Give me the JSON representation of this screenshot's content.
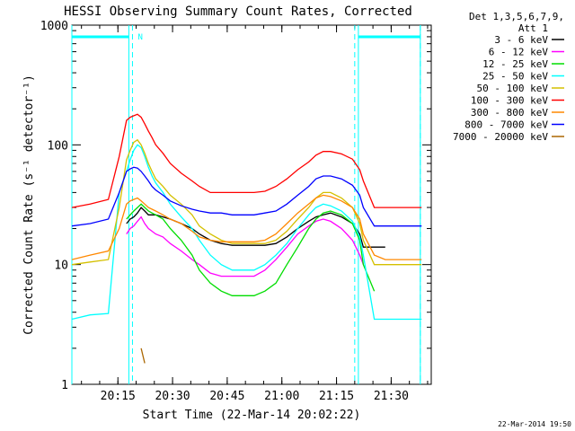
{
  "chart_data": {
    "type": "line",
    "title": "HESSI Observing Summary Count Rates, Corrected",
    "xlabel": "Start Time (22-Mar-14 20:02:22)",
    "ylabel": "Corrected Count Rate (s⁻¹ detector⁻¹)",
    "y_scale": "log",
    "ylim": [
      1,
      1000
    ],
    "xlim": [
      "20:02:22",
      "21:41:00"
    ],
    "x_ticks": [
      "20:15",
      "20:30",
      "20:45",
      "21:00",
      "21:15",
      "21:30"
    ],
    "y_ticks": [
      "1",
      "10",
      "100",
      "1000"
    ],
    "legend_header": [
      "Det 1,3,5,6,7,9,",
      "Att 1"
    ],
    "legend_position": "right",
    "footer_date": "22-Mar-2014 19:50",
    "markers": {
      "dashed_times": [
        "20:19",
        "21:20",
        "21:38"
      ],
      "night_intervals": [
        [
          "20:02:22",
          "20:18"
        ],
        [
          "21:21",
          "21:38"
        ]
      ],
      "n_label": "N"
    },
    "x_minutes": [
      0,
      5,
      10,
      13,
      15,
      16,
      17,
      18,
      19,
      20,
      21,
      22,
      23,
      25,
      27,
      30,
      33,
      35,
      38,
      41,
      44,
      47,
      50,
      53,
      56,
      59,
      62,
      65,
      67,
      69,
      71,
      74,
      77,
      79,
      80,
      83,
      86,
      90,
      93,
      96
    ],
    "series": [
      {
        "name": "3 - 6 keV",
        "color": "#000000",
        "values": [
          null,
          null,
          null,
          null,
          22,
          24,
          25,
          27,
          30,
          28,
          26,
          26,
          26,
          25,
          24,
          22,
          20,
          18,
          16,
          15,
          14.5,
          14.5,
          14.5,
          14.5,
          15,
          17,
          20,
          23,
          25,
          26,
          27,
          25,
          22,
          18,
          14,
          14,
          14,
          null,
          null,
          null
        ]
      },
      {
        "name": "6 - 12 keV",
        "color": "#ff00ff",
        "values": [
          null,
          null,
          null,
          null,
          18,
          20,
          21,
          23,
          25,
          22,
          20,
          19,
          18,
          17,
          15,
          13,
          11,
          10,
          8.5,
          8,
          8,
          8,
          8,
          9,
          11,
          14,
          18,
          21,
          23,
          24,
          23,
          20,
          16,
          12,
          10,
          null,
          null,
          null,
          null,
          null
        ]
      },
      {
        "name": "12 - 25 keV",
        "color": "#00dd00",
        "values": [
          null,
          null,
          null,
          null,
          24,
          26,
          28,
          30,
          32,
          30,
          28,
          27,
          26,
          24,
          20,
          16,
          12,
          9,
          7,
          6,
          5.5,
          5.5,
          5.5,
          6,
          7,
          10,
          14,
          20,
          24,
          27,
          28,
          26,
          22,
          16,
          10,
          6,
          null,
          null,
          null,
          null
        ]
      },
      {
        "name": "25 - 50 keV",
        "color": "#00ffff",
        "values": [
          3.5,
          3.8,
          3.9,
          40,
          60,
          75,
          90,
          100,
          95,
          80,
          65,
          55,
          48,
          40,
          32,
          25,
          20,
          16,
          12,
          10,
          9,
          9,
          9,
          10,
          12,
          15,
          20,
          26,
          30,
          32,
          31,
          28,
          23,
          17,
          12,
          3.5,
          3.5,
          3.5,
          3.5,
          3.5
        ]
      },
      {
        "name": "50 - 100 keV",
        "color": "#d4c000",
        "values": [
          10,
          10.5,
          11,
          30,
          75,
          90,
          105,
          110,
          100,
          85,
          70,
          60,
          52,
          45,
          38,
          32,
          26,
          21,
          18,
          16,
          15,
          15,
          15,
          15,
          16,
          19,
          24,
          30,
          36,
          40,
          40,
          36,
          30,
          22,
          16,
          10,
          10,
          10,
          10,
          10
        ]
      },
      {
        "name": "100 - 300 keV",
        "color": "#ff0000",
        "values": [
          30,
          32,
          35,
          80,
          160,
          170,
          175,
          180,
          170,
          150,
          130,
          115,
          100,
          85,
          70,
          58,
          50,
          45,
          40,
          40,
          40,
          40,
          40,
          41,
          45,
          52,
          62,
          72,
          82,
          88,
          88,
          84,
          76,
          62,
          50,
          30,
          30,
          30,
          30,
          30
        ]
      },
      {
        "name": "300 - 800 keV",
        "color": "#ff8800",
        "values": [
          11,
          12,
          13,
          20,
          32,
          34,
          35,
          36,
          34,
          32,
          30,
          29,
          28,
          26,
          24,
          22,
          19,
          17,
          16,
          15.5,
          15.5,
          15.5,
          15.5,
          16,
          18,
          22,
          27,
          32,
          36,
          38,
          37,
          34,
          30,
          24,
          18,
          12,
          11,
          11,
          11,
          11
        ]
      },
      {
        "name": "800 - 7000 keV",
        "color": "#0000ff",
        "values": [
          21,
          22,
          24,
          40,
          60,
          63,
          65,
          64,
          60,
          55,
          50,
          45,
          42,
          38,
          34,
          31,
          29,
          28,
          27,
          27,
          26,
          26,
          26,
          27,
          28,
          32,
          38,
          45,
          52,
          55,
          55,
          52,
          46,
          38,
          30,
          21,
          21,
          21,
          21,
          21
        ]
      },
      {
        "name": "7000 - 20000 keV",
        "color": "#aa6600",
        "values": [
          null,
          null,
          null,
          null,
          null,
          null,
          null,
          null,
          2,
          1.5,
          null,
          null,
          null,
          null,
          null,
          null,
          null,
          null,
          null,
          null,
          null,
          null,
          null,
          null,
          null,
          null,
          null,
          null,
          null,
          null,
          null,
          null,
          null,
          null,
          null,
          null,
          null,
          null,
          null,
          null
        ]
      }
    ]
  }
}
